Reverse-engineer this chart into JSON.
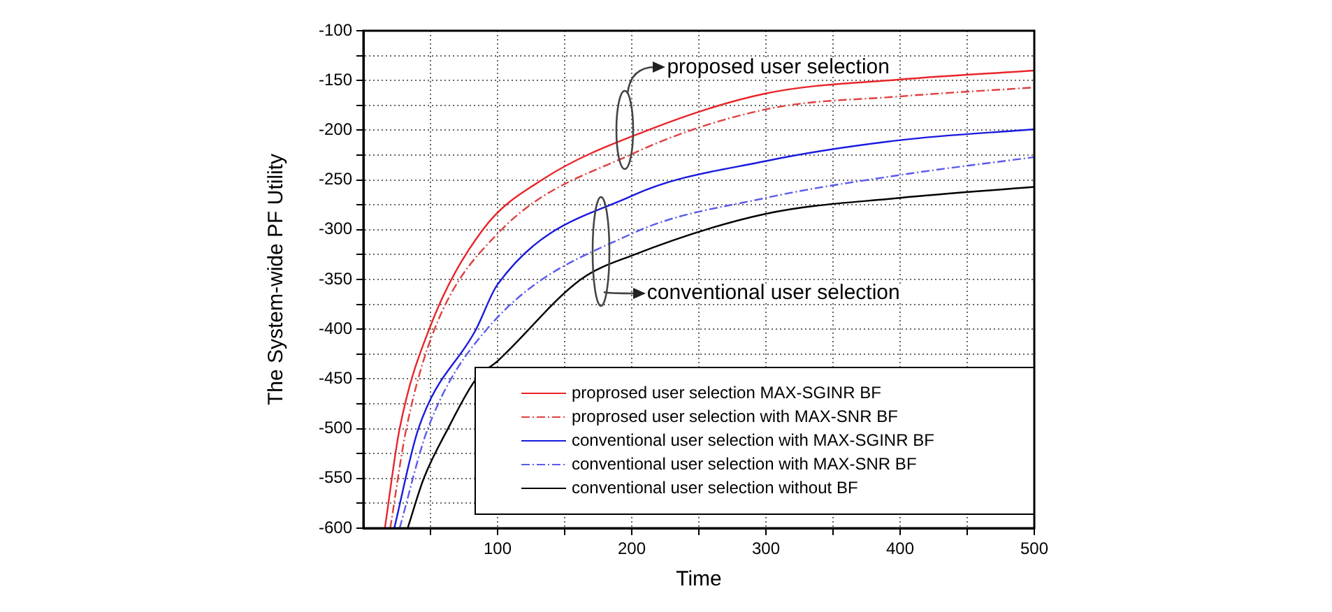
{
  "chart_data": {
    "type": "line",
    "xlabel": "Time",
    "ylabel": "The System-wide PF Utility",
    "xlim": [
      0,
      500
    ],
    "xticks": [
      {
        "value": 50,
        "label": null
      },
      100,
      {
        "value": 150,
        "label": null
      },
      200,
      {
        "value": 250,
        "label": null
      },
      300,
      {
        "value": 350,
        "label": null
      },
      400,
      {
        "value": 450,
        "label": null
      },
      500
    ],
    "ylim": [
      -600,
      -100
    ],
    "yticks": [
      -600,
      {
        "value": -575,
        "label": null
      },
      -550,
      {
        "value": -525,
        "label": null
      },
      -500,
      {
        "value": -475,
        "label": null
      },
      -450,
      {
        "value": -425,
        "label": null
      },
      -400,
      {
        "value": -375,
        "label": null
      },
      -350,
      {
        "value": -325,
        "label": null
      },
      -300,
      {
        "value": -275,
        "label": null
      },
      -250,
      {
        "value": -225,
        "label": null
      },
      -200,
      {
        "value": -175,
        "label": null
      },
      -150,
      {
        "value": -125,
        "label": null
      },
      -100
    ],
    "grid": true,
    "legend": "bottom right",
    "marker": "none",
    "annotations": [
      "proposed user selection",
      {
        "text": "conventional user selection",
        "x": 177,
        "y": -322
      }
    ],
    "series": [
      {
        "name": "proprosed user selection MAX-SGINR BF",
        "color": "#e8262b",
        "line_style": "solid",
        "x": [
          16,
          27,
          49,
          89,
          133,
          212,
          300,
          400,
          500
        ],
        "values": [
          -600,
          -500,
          -400,
          -300,
          -250,
          -200,
          -163,
          -149,
          -140
        ]
      },
      {
        "name": "proprosed user selection with MAX-SNR BF",
        "color": "#e04040",
        "line_style": "dashed",
        "x": [
          20,
          32,
          53,
          100,
          200,
          300,
          400,
          500
        ],
        "values": [
          -600,
          -500,
          -400,
          -304,
          -224,
          -179,
          -166,
          -157
        ]
      },
      {
        "name": "conventional user selection with MAX-SGINR BF",
        "color": "#1a1adf",
        "line_style": "solid",
        "x": [
          23,
          41,
          84,
          100,
          200,
          300,
          400,
          500
        ],
        "values": [
          -600,
          -500,
          -400,
          -355,
          -266,
          -231,
          -210,
          -199
        ]
      },
      {
        "name": "conventional user selection with MAX-SNR BF",
        "color": "#5a5aee",
        "line_style": "dashed",
        "x": [
          27,
          48,
          92,
          200,
          300,
          400,
          500
        ],
        "values": [
          -600,
          -500,
          -400,
          -304,
          -268,
          -245,
          -227
        ]
      },
      {
        "name": "conventional user selection without BF",
        "color": "#000000",
        "line_style": "solid",
        "x": [
          33,
          45,
          63,
          84,
          100,
          162,
          200,
          300,
          400,
          500
        ],
        "values": [
          -600,
          -550,
          -500,
          -450,
          -432,
          -350,
          -326,
          -284,
          -268,
          -257
        ]
      }
    ]
  }
}
